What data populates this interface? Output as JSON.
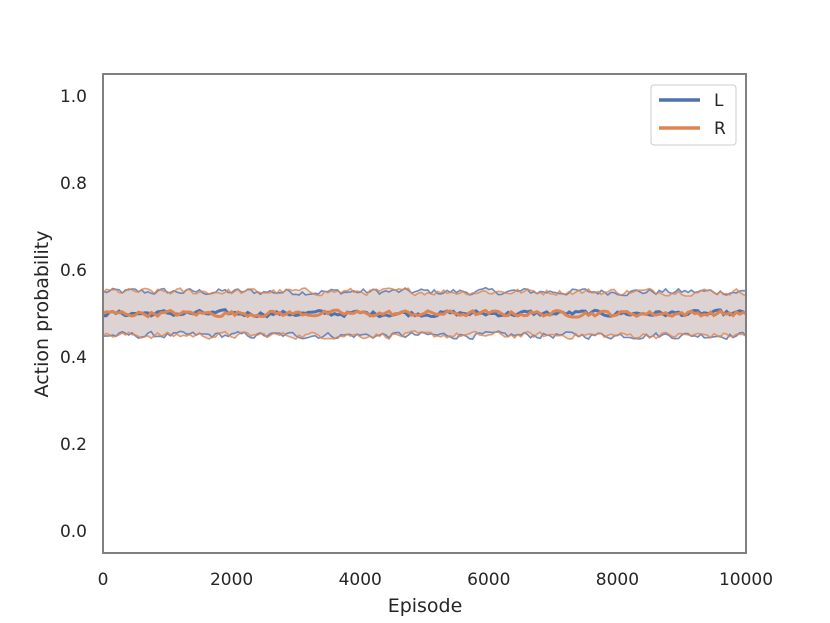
{
  "chart_data": {
    "type": "line",
    "title": "",
    "xlabel": "Episode",
    "ylabel": "Action probability",
    "xlim": [
      0,
      10000
    ],
    "ylim": [
      -0.05,
      1.05
    ],
    "xticks": [
      "0",
      "2000",
      "4000",
      "6000",
      "8000",
      "10000"
    ],
    "yticks": [
      "0.0",
      "0.2",
      "0.4",
      "0.6",
      "0.8",
      "1.0"
    ],
    "grid": false,
    "legend": "top-right",
    "series": [
      {
        "name": "L",
        "color": "#4c72b0",
        "mean": 0.5,
        "band_low": 0.45,
        "band_high": 0.55
      },
      {
        "name": "R",
        "color": "#dd8452",
        "mean": 0.5,
        "band_low": 0.45,
        "band_high": 0.55
      }
    ],
    "band_fill_color": "#d6c8c8"
  }
}
